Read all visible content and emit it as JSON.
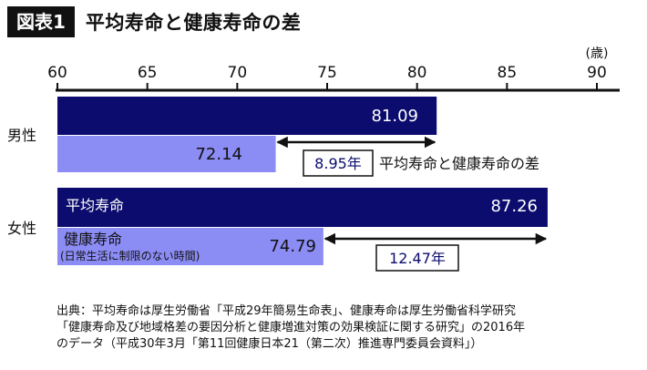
{
  "header": {
    "figure_label": "図表1",
    "title": "平均寿命と健康寿命の差"
  },
  "chart_data": {
    "type": "bar",
    "orientation": "horizontal",
    "axis_unit": "(歳)",
    "xlim": [
      60,
      90
    ],
    "ticks": [
      60,
      65,
      70,
      75,
      80,
      85,
      90
    ],
    "categories": [
      "男性",
      "女性"
    ],
    "series": [
      {
        "name": "平均寿命",
        "values": [
          81.09,
          87.26
        ],
        "color": "#0b0c6e"
      },
      {
        "name": "健康寿命",
        "values": [
          72.14,
          74.79
        ],
        "color": "#8c8cf5"
      }
    ],
    "male": {
      "category": "男性",
      "avg_value": "81.09",
      "healthy_value": "72.14",
      "diff_label": "8.95年",
      "diff_caption": "平均寿命と健康寿命の差"
    },
    "female": {
      "category": "女性",
      "avg_value": "87.26",
      "healthy_value": "74.79",
      "diff_label": "12.47年",
      "avg_label": "平均寿命",
      "healthy_label": "健康寿命",
      "healthy_sublabel": "(日常生活に制限のない時間)"
    }
  },
  "source": {
    "line1": "出典：平均寿命は厚生労働省「平成29年簡易生命表」、健康寿命は厚生労働省科学研究",
    "line2": "「健康寿命及び地域格差の要因分析と健康増進対策の効果検証に関する研究」の2016年",
    "line3": "のデータ（平成30年3月「第11回健康日本21（第二次）推進専門委員会資料」）"
  }
}
